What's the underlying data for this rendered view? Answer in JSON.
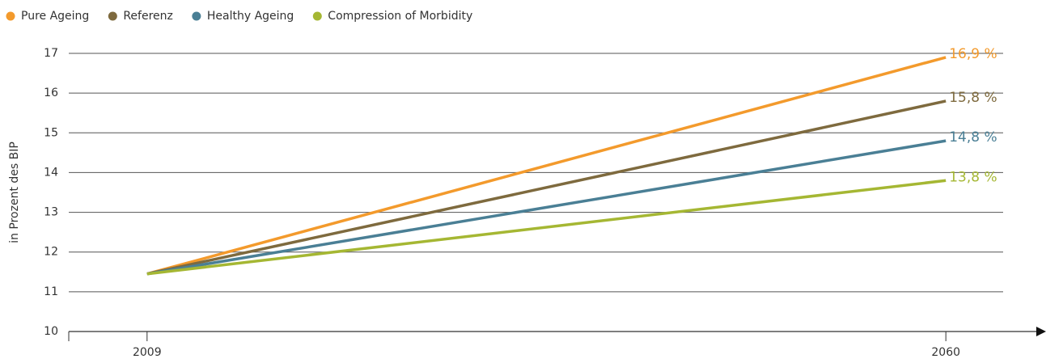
{
  "chart_data": {
    "type": "line",
    "y_label": "in Prozent des BIP",
    "x": [
      2009,
      2060
    ],
    "xlim": [
      2004,
      2065
    ],
    "xticks": [
      2009,
      2060
    ],
    "ylim": [
      10,
      17
    ],
    "yticks": [
      10,
      11,
      12,
      13,
      14,
      15,
      16,
      17
    ],
    "grid": true,
    "legend": "top",
    "series": [
      {
        "name": "Pure Ageing",
        "color": "#f39a2c",
        "values": [
          11.45,
          16.9
        ],
        "value_labels": [
          null,
          "16,9 %"
        ]
      },
      {
        "name": "Referenz",
        "color": "#7e6a3e",
        "values": [
          11.45,
          15.8
        ],
        "value_labels": [
          null,
          "15,8 %"
        ]
      },
      {
        "name": "Healthy Ageing",
        "color": "#4a7f95",
        "values": [
          11.45,
          14.8
        ],
        "value_labels": [
          null,
          "14,8 %"
        ]
      },
      {
        "name": "Compression of Morbidity",
        "color": "#a5b733",
        "values": [
          11.45,
          13.8
        ],
        "value_labels": [
          null,
          "13,8 %"
        ]
      }
    ]
  }
}
